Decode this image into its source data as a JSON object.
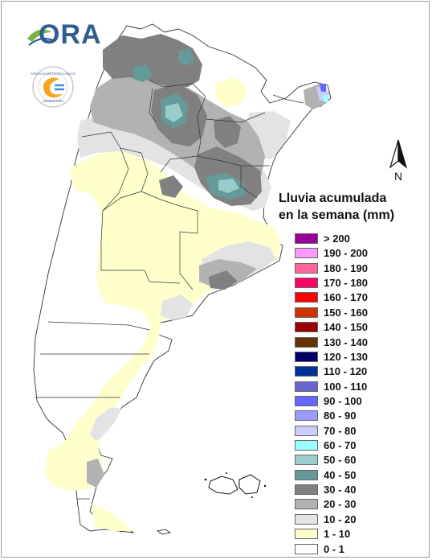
{
  "logo": {
    "text": "ORA",
    "seal_text": "SERVICIO METEOROLÓGICO NACIONAL · ARGENTINA"
  },
  "north_arrow": {
    "label": "N"
  },
  "legend": {
    "title_line1": "Lluvia acumulada",
    "title_line2": "en la semana (mm)",
    "items": [
      {
        "label": "> 200",
        "color": "#990099"
      },
      {
        "label": "190 - 200",
        "color": "#ff99ff"
      },
      {
        "label": "180 - 190",
        "color": "#ff6699"
      },
      {
        "label": "170 - 180",
        "color": "#ff0066"
      },
      {
        "label": "160 - 170",
        "color": "#ff0000"
      },
      {
        "label": "150 - 160",
        "color": "#cc3300"
      },
      {
        "label": "140 - 150",
        "color": "#990000"
      },
      {
        "label": "130 - 140",
        "color": "#663300"
      },
      {
        "label": "120 - 130",
        "color": "#000066"
      },
      {
        "label": "110 - 120",
        "color": "#003399"
      },
      {
        "label": "100 - 110",
        "color": "#6666cc"
      },
      {
        "label": "90 - 100",
        "color": "#6666ff"
      },
      {
        "label": "80 - 90",
        "color": "#9999ff"
      },
      {
        "label": "70 - 80",
        "color": "#ccccff"
      },
      {
        "label": "60 - 70",
        "color": "#99ffff"
      },
      {
        "label": "50 - 60",
        "color": "#99cccc"
      },
      {
        "label": "40 - 50",
        "color": "#669999"
      },
      {
        "label": "30 - 40",
        "color": "#808080"
      },
      {
        "label": "20 - 30",
        "color": "#b2b2b2"
      },
      {
        "label": "10 - 20",
        "color": "#e3e3e3"
      },
      {
        "label": "1 - 10",
        "color": "#ffffcc"
      },
      {
        "label": "0 - 1",
        "color": "#ffffff"
      }
    ]
  },
  "map": {
    "country": "Argentina",
    "base_color": "#ffffff",
    "border_color": "#333333"
  }
}
